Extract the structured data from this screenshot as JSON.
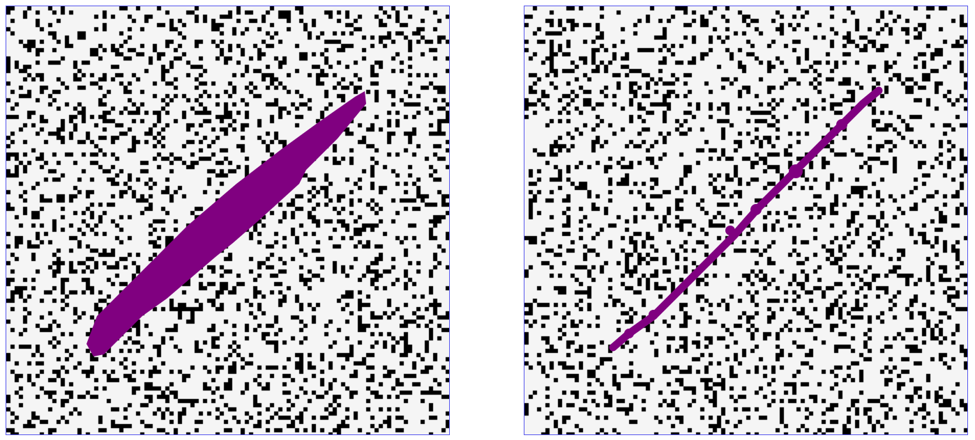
{
  "panels": [
    {
      "id": "left",
      "shape": "wide-filled-diagonal-band",
      "fill_color": "#800080"
    },
    {
      "id": "right",
      "shape": "thin-diagonal-path",
      "fill_color": "#800080"
    }
  ],
  "colors": {
    "background": "#f5f5f5",
    "noise": "#000000",
    "path": "#800080",
    "border": "#5555ee"
  },
  "noise_density": 0.22
}
